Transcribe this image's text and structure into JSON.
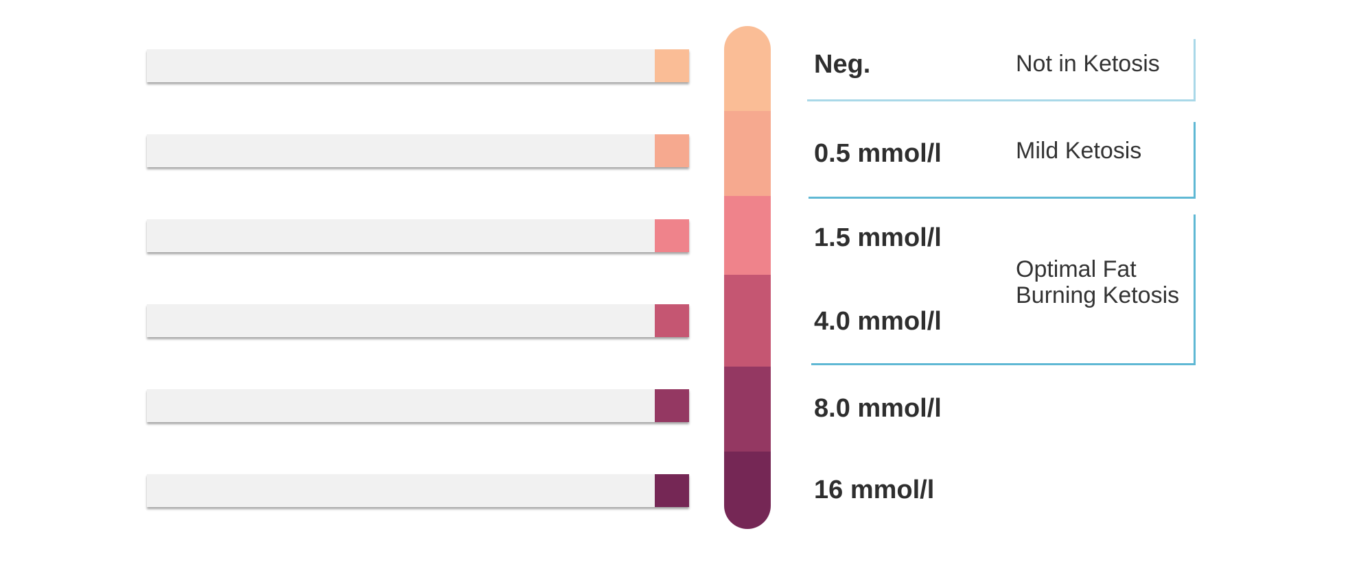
{
  "strips": [
    {
      "color": "#fabd96"
    },
    {
      "color": "#f6a98f"
    },
    {
      "color": "#ef838b"
    },
    {
      "color": "#c55672"
    },
    {
      "color": "#943862"
    },
    {
      "color": "#752755"
    }
  ],
  "scale": {
    "segments": [
      {
        "color": "#fabd96"
      },
      {
        "color": "#f6a98f"
      },
      {
        "color": "#ef838b"
      },
      {
        "color": "#c55672"
      },
      {
        "color": "#943862"
      },
      {
        "color": "#752755"
      }
    ]
  },
  "levels": [
    "Neg.",
    "0.5 mmol/l",
    "1.5 mmol/l",
    "4.0 mmol/l",
    "8.0 mmol/l",
    "16 mmol/l"
  ],
  "states": {
    "not_in_ketosis": "Not in Ketosis",
    "mild_ketosis": "Mild Ketosis",
    "optimal_line1": "Optimal Fat",
    "optimal_line2": "Burning Ketosis"
  },
  "bracket_color": "#5fb8d4"
}
